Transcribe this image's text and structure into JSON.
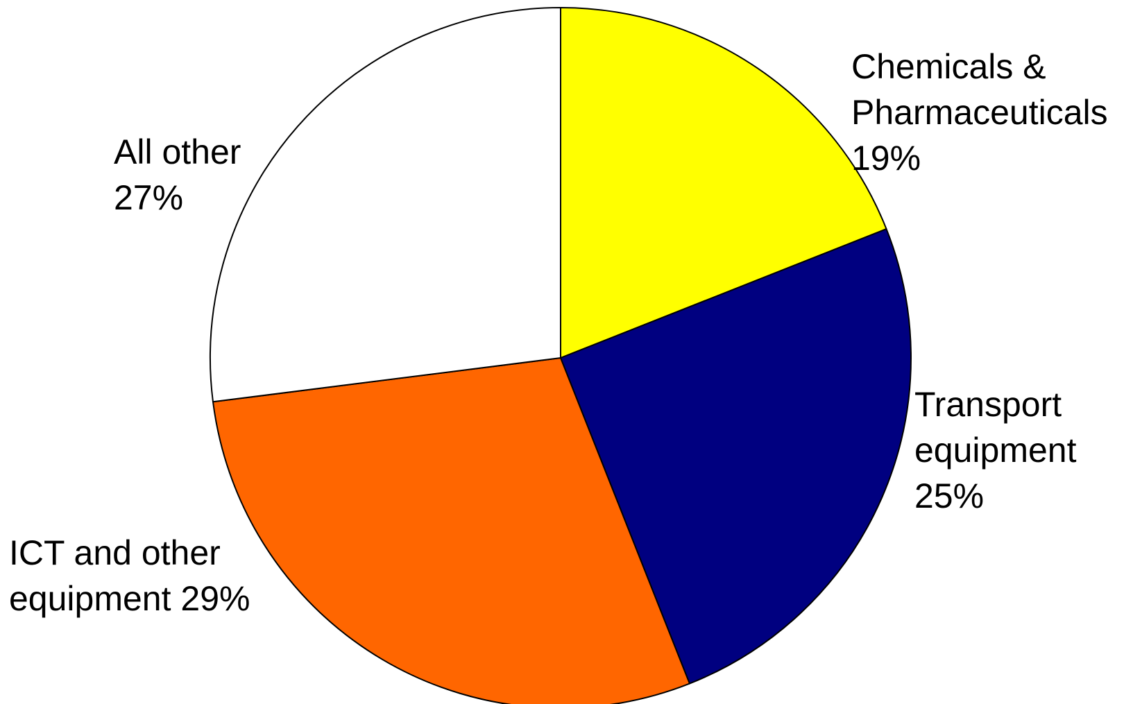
{
  "chart_data": {
    "type": "pie",
    "slices": [
      {
        "name": "Chemicals & Pharmaceuticals",
        "value": 19,
        "label_lines": [
          "Chemicals &",
          "Pharmaceuticals",
          "19%"
        ],
        "color": "#FFFF00"
      },
      {
        "name": "Transport equipment",
        "value": 25,
        "label_lines": [
          "Transport",
          "equipment",
          "25%"
        ],
        "color": "#000080"
      },
      {
        "name": "ICT and other equipment",
        "value": 29,
        "label_lines": [
          "ICT and other",
          "equipment 29%"
        ],
        "color": "#FF6600"
      },
      {
        "name": "All other",
        "value": 27,
        "label_lines": [
          "All other",
          "27%"
        ],
        "color": "#FFFFFF"
      }
    ],
    "start": "12 o'clock",
    "direction": "clockwise",
    "legend": "none"
  }
}
